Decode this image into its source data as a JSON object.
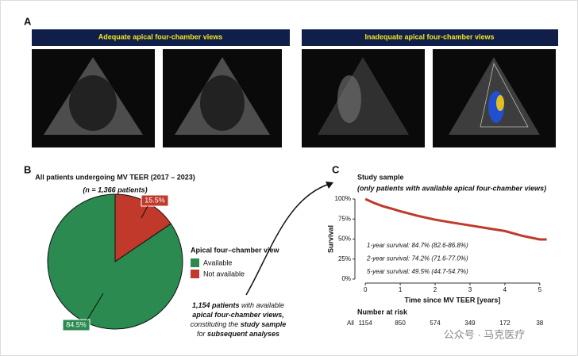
{
  "panels": {
    "a": "A",
    "b": "B",
    "c": "C"
  },
  "panel_a": {
    "left_header": "Adequate apical four-chamber views",
    "right_header": "Inadequate apical four-chamber views"
  },
  "watermark": "公众号 · 马克医疗",
  "chart_data": [
    {
      "type": "pie",
      "title": "All patients undergoing MV TEER (2017 – 2023)",
      "subtitle": "(n = 1,366 patients)",
      "categories": [
        "Available",
        "Not available"
      ],
      "values": [
        84.5,
        15.5
      ],
      "value_labels": [
        "84.5%",
        "15.5%"
      ],
      "colors": [
        "#2a8a4f",
        "#c0392b"
      ],
      "legend_title": "Apical four–chamber view",
      "annotation": [
        [
          {
            "text": "1,154 patients",
            "bold": true
          },
          {
            "text": " with available",
            "bold": false
          }
        ],
        [
          {
            "text": "apical four-chamber views,",
            "bold": true
          }
        ],
        [
          {
            "text": "constituting the ",
            "bold": false
          },
          {
            "text": "study sample",
            "bold": true
          }
        ],
        [
          {
            "text": "for ",
            "bold": false
          },
          {
            "text": "subsequent analyses",
            "bold": true
          }
        ]
      ]
    },
    {
      "type": "line",
      "title": "Study sample",
      "subtitle": "(only patients with available apical four-chamber views)",
      "x_label": "Time since MV TEER [years]",
      "y_label": "Survival",
      "xlim": [
        -0.3,
        5.3
      ],
      "xticks": [
        0,
        1,
        2,
        3,
        4,
        5
      ],
      "ylim": [
        0,
        100
      ],
      "yticks": [
        {
          "value": 0,
          "label": "0%"
        },
        {
          "value": 25,
          "label": "25%"
        },
        {
          "value": 50,
          "label": "50%"
        },
        {
          "value": 75,
          "label": "75%"
        },
        {
          "value": 100,
          "label": "100%"
        }
      ],
      "x": [
        0,
        0.25,
        0.5,
        0.75,
        1,
        1.5,
        2,
        2.5,
        3,
        3.5,
        4,
        4.5,
        5,
        5.2
      ],
      "series": [
        {
          "name": "All",
          "color": "#c0392b",
          "values": [
            100,
            95,
            91,
            88,
            84.7,
            79,
            74.2,
            70.5,
            67,
            63.5,
            60,
            54,
            49.5,
            49.5
          ]
        }
      ],
      "annotations": [
        "1-year survival: 84.7% (82.6-86.8%)",
        "2-year survival: 74.2% (71.6-77.0%)",
        "5-year survival: 49.5% (44.7-54.7%)"
      ],
      "risk_table": {
        "title": "Number at risk",
        "label": "All",
        "values": [
          1154,
          850,
          574,
          349,
          172,
          38
        ]
      }
    }
  ]
}
